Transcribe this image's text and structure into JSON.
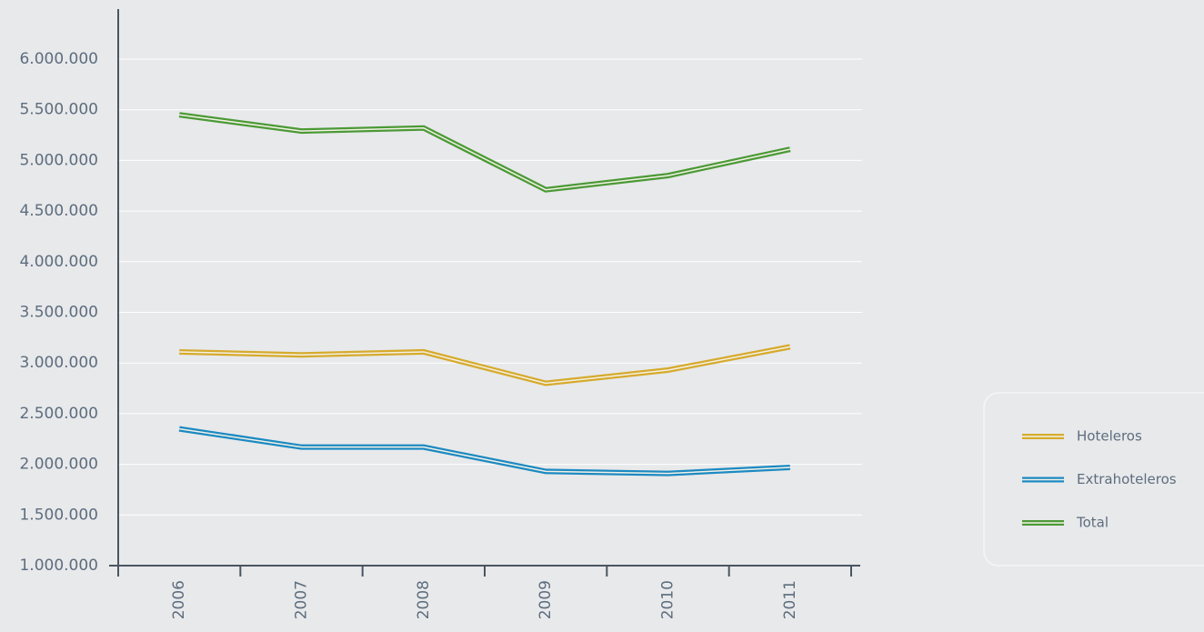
{
  "chart_data": {
    "type": "line",
    "categories": [
      "2006",
      "2007",
      "2008",
      "2009",
      "2010",
      "2011"
    ],
    "series": [
      {
        "name": "Hoteleros",
        "color": "#d6aa2c",
        "values": [
          3110000,
          3080000,
          3110000,
          2800000,
          2930000,
          3160000
        ]
      },
      {
        "name": "Extrahoteleros",
        "color": "#1c8ac2",
        "values": [
          2350000,
          2170000,
          2170000,
          1930000,
          1910000,
          1970000
        ]
      },
      {
        "name": "Total",
        "color": "#4b9a36",
        "values": [
          5450000,
          5290000,
          5320000,
          4710000,
          4850000,
          5110000
        ]
      }
    ],
    "ylim": [
      1000000,
      6500000
    ],
    "yticks": [
      {
        "value": 1000000,
        "label": "1.000.000"
      },
      {
        "value": 1500000,
        "label": "1.500.000"
      },
      {
        "value": 2000000,
        "label": "2.000.000"
      },
      {
        "value": 2500000,
        "label": "2.500.000"
      },
      {
        "value": 3000000,
        "label": "3.000.000"
      },
      {
        "value": 3500000,
        "label": "3.500.000"
      },
      {
        "value": 4000000,
        "label": "4.000.000"
      },
      {
        "value": 4500000,
        "label": "4.500.000"
      },
      {
        "value": 5000000,
        "label": "5.000.000"
      },
      {
        "value": 5500000,
        "label": "5.500.000"
      },
      {
        "value": 6000000,
        "label": "6.000.000"
      }
    ],
    "grid": true,
    "legend": "right"
  }
}
